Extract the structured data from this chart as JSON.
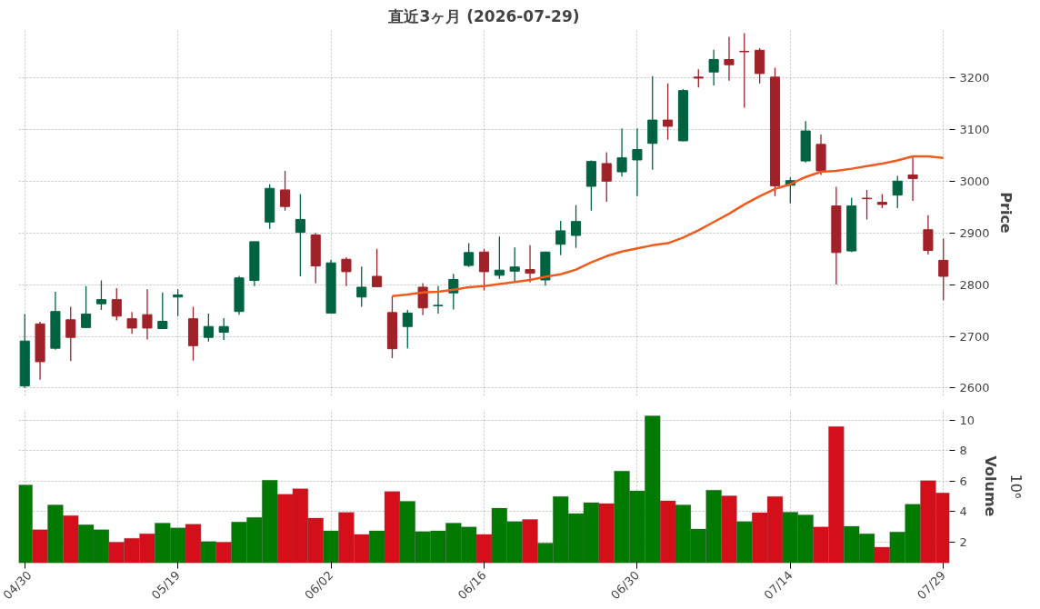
{
  "chart_data": [
    {
      "type": "candlestick",
      "title": "直近3ヶ月 (2026-07-29)",
      "ylabel": "Price",
      "ylim": [
        2585,
        3293
      ],
      "yticks": [
        2600,
        2700,
        2800,
        2900,
        3000,
        3100,
        3200
      ],
      "grid": true,
      "tick_labels": "y",
      "categories": [
        null,
        null,
        null,
        null,
        null,
        null,
        null,
        null,
        null,
        null,
        null,
        null,
        null,
        null,
        null,
        null,
        null,
        null,
        null,
        null,
        null,
        null,
        null,
        null,
        null,
        null,
        null,
        null,
        null,
        null,
        null,
        null,
        null,
        null,
        null,
        null,
        null,
        null,
        null,
        null,
        null,
        null,
        null,
        null,
        null,
        null,
        null,
        null,
        null,
        null,
        null,
        null,
        null,
        null,
        null,
        null,
        null,
        null,
        null,
        null,
        null
      ],
      "ohlc": [
        [
          2604,
          2743,
          2601,
          2691
        ],
        [
          2724,
          2728,
          2616,
          2651
        ],
        [
          2677,
          2786,
          2674,
          2748
        ],
        [
          2732,
          2757,
          2652,
          2698
        ],
        [
          2717,
          2797,
          2716,
          2743
        ],
        [
          2763,
          2808,
          2751,
          2771
        ],
        [
          2771,
          2793,
          2731,
          2739
        ],
        [
          2734,
          2747,
          2705,
          2716
        ],
        [
          2742,
          2791,
          2694,
          2716
        ],
        [
          2715,
          2785,
          2715,
          2729
        ],
        [
          2776,
          2791,
          2739,
          2780
        ],
        [
          2734,
          2757,
          2653,
          2682
        ],
        [
          2698,
          2744,
          2690,
          2719
        ],
        [
          2708,
          2735,
          2693,
          2719
        ],
        [
          2748,
          2817,
          2742,
          2813
        ],
        [
          2808,
          2883,
          2797,
          2883
        ],
        [
          2921,
          2994,
          2908,
          2986
        ],
        [
          2983,
          3020,
          2943,
          2951
        ],
        [
          2901,
          2975,
          2816,
          2926
        ],
        [
          2896,
          2900,
          2803,
          2836
        ],
        [
          2745,
          2848,
          2745,
          2842
        ],
        [
          2849,
          2853,
          2797,
          2825
        ],
        [
          2776,
          2835,
          2757,
          2795
        ],
        [
          2816,
          2869,
          2796,
          2796
        ],
        [
          2746,
          2778,
          2658,
          2676
        ],
        [
          2719,
          2751,
          2677,
          2745
        ],
        [
          2795,
          2803,
          2741,
          2755
        ],
        [
          2759,
          2797,
          2744,
          2760
        ],
        [
          2784,
          2821,
          2752,
          2810
        ],
        [
          2837,
          2880,
          2834,
          2862
        ],
        [
          2863,
          2869,
          2789,
          2825
        ],
        [
          2818,
          2893,
          2811,
          2828
        ],
        [
          2826,
          2872,
          2805,
          2834
        ],
        [
          2829,
          2876,
          2804,
          2822
        ],
        [
          2809,
          2863,
          2798,
          2863
        ],
        [
          2878,
          2923,
          2857,
          2904
        ],
        [
          2895,
          2954,
          2871,
          2922
        ],
        [
          2990,
          3040,
          2943,
          3038
        ],
        [
          3034,
          3056,
          2960,
          3000
        ],
        [
          3018,
          3102,
          3009,
          3045
        ],
        [
          3041,
          3102,
          2971,
          3061
        ],
        [
          3073,
          3203,
          3022,
          3118
        ],
        [
          3118,
          3189,
          3080,
          3106
        ],
        [
          3078,
          3178,
          3077,
          3175
        ],
        [
          3201,
          3216,
          3181,
          3199
        ],
        [
          3211,
          3254,
          3185,
          3235
        ],
        [
          3235,
          3279,
          3194,
          3225
        ],
        [
          3251,
          3286,
          3142,
          3250
        ],
        [
          3253,
          3257,
          3189,
          3208
        ],
        [
          3201,
          3219,
          2971,
          2991
        ],
        [
          2992,
          3007,
          2957,
          3001
        ],
        [
          3039,
          3116,
          3036,
          3097
        ],
        [
          3071,
          3090,
          3012,
          3020
        ],
        [
          2952,
          2989,
          2800,
          2862
        ],
        [
          2865,
          2968,
          2863,
          2952
        ],
        [
          2967,
          2983,
          2926,
          2966
        ],
        [
          2959,
          2975,
          2948,
          2955
        ],
        [
          2973,
          3010,
          2948,
          3000
        ],
        [
          3012,
          3048,
          2962,
          3005
        ],
        [
          2906,
          2934,
          2858,
          2866
        ],
        [
          2847,
          2889,
          2770,
          2816
        ]
      ],
      "colors": [
        "#006340",
        "#a02128",
        "#006340",
        "#a02128",
        "#006340",
        "#006340",
        "#a02128",
        "#a02128",
        "#a02128",
        "#006340",
        "#006340",
        "#a02128",
        "#006340",
        "#006340",
        "#006340",
        "#006340",
        "#006340",
        "#a02128",
        "#006340",
        "#a02128",
        "#006340",
        "#a02128",
        "#006340",
        "#a02128",
        "#a02128",
        "#006340",
        "#a02128",
        "#006340",
        "#006340",
        "#006340",
        "#a02128",
        "#006340",
        "#006340",
        "#a02128",
        "#006340",
        "#006340",
        "#006340",
        "#006340",
        "#a02128",
        "#006340",
        "#006340",
        "#006340",
        "#a02128",
        "#006340",
        "#a02128",
        "#006340",
        "#a02128",
        "#a02128",
        "#a02128",
        "#a02128",
        "#006340",
        "#006340",
        "#a02128",
        "#a02128",
        "#006340",
        "#a02128",
        "#a02128",
        "#006340",
        "#a02128",
        "#a02128",
        "#a02128"
      ],
      "series": [
        {
          "type": "line",
          "color": "#f05a1e",
          "values": [
            null,
            null,
            null,
            null,
            null,
            null,
            null,
            null,
            null,
            null,
            null,
            null,
            null,
            null,
            null,
            null,
            null,
            null,
            null,
            null,
            null,
            null,
            null,
            null,
            2778,
            2781,
            2785,
            2786,
            2790,
            2795,
            2797,
            2801,
            2805,
            2809,
            2815,
            2820,
            2829,
            2843,
            2855,
            2864,
            2870,
            2876,
            2880,
            2891,
            2905,
            2921,
            2937,
            2955,
            2971,
            2985,
            2994,
            3008,
            3018,
            3020,
            3024,
            3029,
            3034,
            3040,
            3048,
            3048,
            3045
          ]
        }
      ]
    },
    {
      "type": "bar",
      "ylabel": "Volume",
      "annotations": [
        "10⁶"
      ],
      "ylim": [
        0.6,
        10.7
      ],
      "yticks": [
        2,
        4,
        6,
        8,
        10
      ],
      "grid": true,
      "categories": [
        "04/30",
        null,
        null,
        null,
        null,
        null,
        null,
        null,
        null,
        null,
        "05/19",
        null,
        null,
        null,
        null,
        null,
        null,
        null,
        null,
        null,
        "06/02",
        null,
        null,
        null,
        null,
        null,
        null,
        null,
        null,
        null,
        "06/16",
        null,
        null,
        null,
        null,
        null,
        null,
        null,
        null,
        null,
        "06/30",
        null,
        null,
        null,
        null,
        null,
        null,
        null,
        null,
        null,
        "07/14",
        null,
        null,
        null,
        null,
        null,
        null,
        null,
        null,
        null,
        "07/29"
      ],
      "values": [
        5.74,
        2.79,
        4.42,
        3.72,
        3.12,
        2.79,
        1.98,
        2.23,
        2.53,
        3.23,
        2.91,
        3.16,
        2.02,
        1.98,
        3.3,
        3.6,
        6.05,
        5.12,
        5.49,
        3.56,
        2.72,
        3.93,
        2.49,
        2.72,
        5.3,
        4.67,
        2.67,
        2.72,
        3.23,
        2.98,
        2.49,
        4.21,
        3.33,
        3.47,
        1.91,
        4.98,
        3.86,
        4.58,
        4.51,
        6.65,
        5.35,
        10.28,
        4.7,
        4.42,
        2.84,
        5.4,
        5.02,
        3.33,
        3.91,
        4.98,
        3.95,
        3.77,
        2.98,
        9.58,
        3.02,
        2.53,
        1.65,
        2.65,
        4.47,
        6.02,
        5.21
      ],
      "colors": [
        "#007a00",
        "#d40f1a",
        "#007a00",
        "#d40f1a",
        "#007a00",
        "#007a00",
        "#d40f1a",
        "#d40f1a",
        "#d40f1a",
        "#007a00",
        "#007a00",
        "#d40f1a",
        "#007a00",
        "#d40f1a",
        "#007a00",
        "#007a00",
        "#007a00",
        "#d40f1a",
        "#d40f1a",
        "#d40f1a",
        "#007a00",
        "#d40f1a",
        "#d40f1a",
        "#007a00",
        "#d40f1a",
        "#007a00",
        "#007a00",
        "#007a00",
        "#007a00",
        "#007a00",
        "#d40f1a",
        "#007a00",
        "#007a00",
        "#d40f1a",
        "#007a00",
        "#007a00",
        "#007a00",
        "#007a00",
        "#d40f1a",
        "#007a00",
        "#007a00",
        "#007a00",
        "#d40f1a",
        "#007a00",
        "#007a00",
        "#007a00",
        "#d40f1a",
        "#007a00",
        "#d40f1a",
        "#d40f1a",
        "#007a00",
        "#007a00",
        "#d40f1a",
        "#d40f1a",
        "#007a00",
        "#007a00",
        "#d40f1a",
        "#007a00",
        "#007a00",
        "#d40f1a",
        "#d40f1a"
      ]
    }
  ]
}
